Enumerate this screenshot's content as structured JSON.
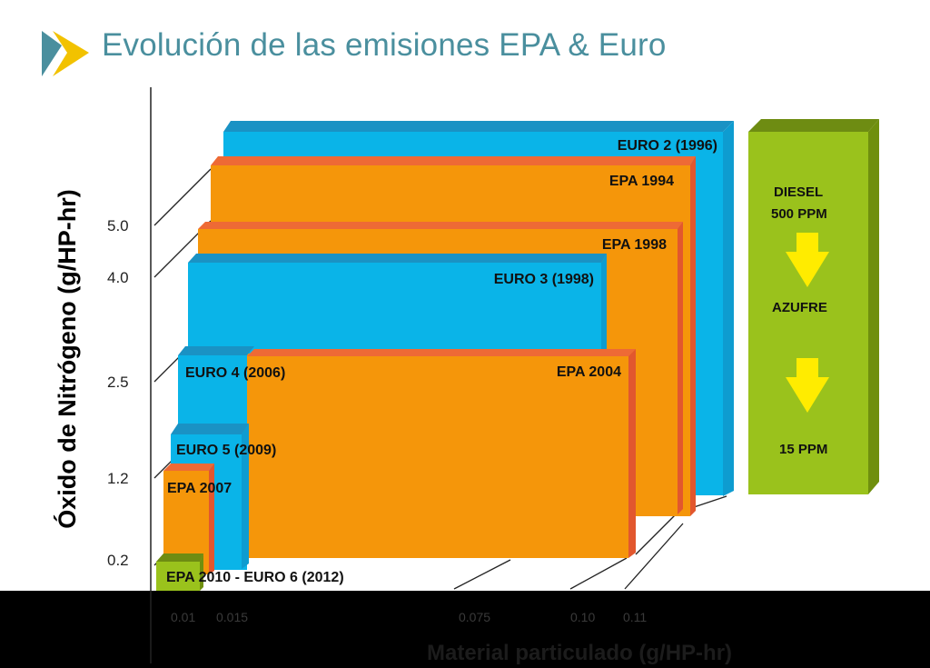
{
  "title": "Evolución de las emisiones EPA & Euro",
  "colors": {
    "title": "#4a8f9e",
    "euro_front": "#0ab4e8",
    "euro_top": "#1a92c4",
    "euro_side": "#0e9cd0",
    "epa_front": "#f5960a",
    "epa_top": "#ee6a35",
    "epa_side": "#e2572e",
    "green_front": "#9ac21c",
    "green_top": "#6e8c12",
    "green_side": "#6f8f0e",
    "arrow": "#ffec00",
    "background_band": "#000000"
  },
  "axes": {
    "y_label": "Óxido de Nitrógeno (g/HP-hr)",
    "x_label": "Material particulado (g/HP-hr)",
    "y_ticks": [
      "5.0",
      "4.0",
      "2.5",
      "1.2",
      "0.2"
    ],
    "x_ticks": [
      "0.01",
      "0.015",
      "0.075",
      "0.10",
      "0.11"
    ]
  },
  "standards": [
    {
      "label": "EURO 2 (1996)",
      "family": "euro",
      "pm": 0.15,
      "nox": 7.0
    },
    {
      "label": "EPA 1994",
      "family": "epa",
      "pm": 0.1,
      "nox": 5.0
    },
    {
      "label": "EPA 1998",
      "family": "epa",
      "pm": 0.1,
      "nox": 4.0
    },
    {
      "label": "EURO 3 (1998)",
      "family": "euro",
      "pm": 0.1,
      "nox": 5.0
    },
    {
      "label": "EPA 2004",
      "family": "epa",
      "pm": 0.1,
      "nox": 2.5
    },
    {
      "label": "EURO 4 (2006)",
      "family": "euro",
      "pm": 0.02,
      "nox": 3.5
    },
    {
      "label": "EURO 5 (2009)",
      "family": "euro",
      "pm": 0.02,
      "nox": 2.0
    },
    {
      "label": "EPA 2007",
      "family": "epa",
      "pm": 0.01,
      "nox": 1.2
    },
    {
      "label": "EPA 2010 - EURO 6 (2012)",
      "family": "green",
      "pm": 0.01,
      "nox": 0.2
    }
  ],
  "sulfur_panel": {
    "top": "DIESEL",
    "top_value": "500 PPM",
    "middle": "AZUFRE",
    "bottom": "15 PPM"
  }
}
